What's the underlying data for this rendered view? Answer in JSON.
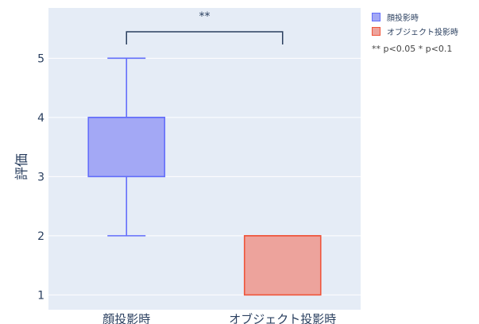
{
  "chart_data": {
    "type": "box",
    "ylabel": "評価",
    "xlabel": "",
    "categories": [
      "顔投影時",
      "オブジェクト投影時"
    ],
    "ylim": [
      0.75,
      5.85
    ],
    "yticks": [
      1,
      2,
      3,
      4,
      5
    ],
    "series": [
      {
        "name": "顔投影時",
        "min": 2,
        "q1": 3,
        "median": 4,
        "q3": 4,
        "max": 5,
        "fill": "#a3a8f5",
        "stroke": "#636efa"
      },
      {
        "name": "オブジェクト投影時",
        "min": 1,
        "q1": 1,
        "median": 2,
        "q3": 2,
        "max": 2,
        "fill": "#eda39c",
        "stroke": "#ef553b"
      }
    ],
    "annotation": {
      "text": "**",
      "between": [
        "顔投影時",
        "オブジェクト投影時"
      ]
    },
    "grid": true,
    "legend": "top-right",
    "background": "#e5ecf6"
  },
  "legend": {
    "items": [
      {
        "label": "顔投影時",
        "fill": "#a3a8f5",
        "stroke": "#636efa"
      },
      {
        "label": "オブジェクト投影時",
        "fill": "#eda39c",
        "stroke": "#ef553b"
      }
    ],
    "note": "** p<0.05   * p<0.1"
  }
}
